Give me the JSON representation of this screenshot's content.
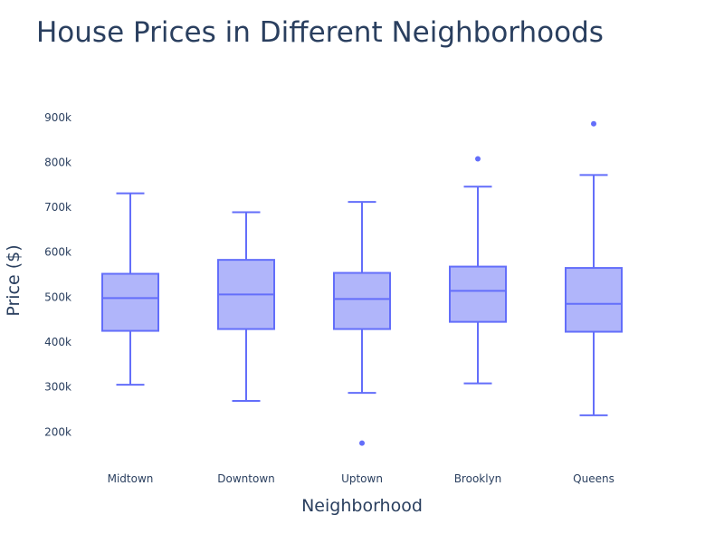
{
  "chart_data": {
    "type": "box",
    "title": "House Prices in Different Neighborhoods",
    "xlabel": "Neighborhood",
    "ylabel": "Price ($)",
    "ylim": [
      130000,
      960000
    ],
    "grid": false,
    "legend": "none",
    "yticks": [
      200000,
      300000,
      400000,
      500000,
      600000,
      700000,
      800000,
      900000
    ],
    "ytick_labels": [
      "200k",
      "300k",
      "400k",
      "500k",
      "600k",
      "700k",
      "800k",
      "900k"
    ],
    "categories": [
      "Midtown",
      "Downtown",
      "Uptown",
      "Brooklyn",
      "Queens"
    ],
    "boxes": [
      {
        "category": "Midtown",
        "whisker_low": 305000,
        "q1": 425000,
        "median": 498000,
        "q3": 552000,
        "whisker_high": 731000,
        "outliers": []
      },
      {
        "category": "Downtown",
        "whisker_low": 269000,
        "q1": 429000,
        "median": 506000,
        "q3": 583000,
        "whisker_high": 689000,
        "outliers": []
      },
      {
        "category": "Uptown",
        "whisker_low": 287000,
        "q1": 429000,
        "median": 496000,
        "q3": 554000,
        "whisker_high": 712000,
        "outliers": [
          175000
        ]
      },
      {
        "category": "Brooklyn",
        "whisker_low": 308000,
        "q1": 445000,
        "median": 514000,
        "q3": 568000,
        "whisker_high": 746000,
        "outliers": [
          808000
        ]
      },
      {
        "category": "Queens",
        "whisker_low": 237000,
        "q1": 423000,
        "median": 485000,
        "q3": 565000,
        "whisker_high": 772000,
        "outliers": [
          886000
        ]
      }
    ],
    "colors": {
      "line": "#636efa",
      "fill": "#b0b5fa",
      "text": "#2a3f5f"
    }
  }
}
